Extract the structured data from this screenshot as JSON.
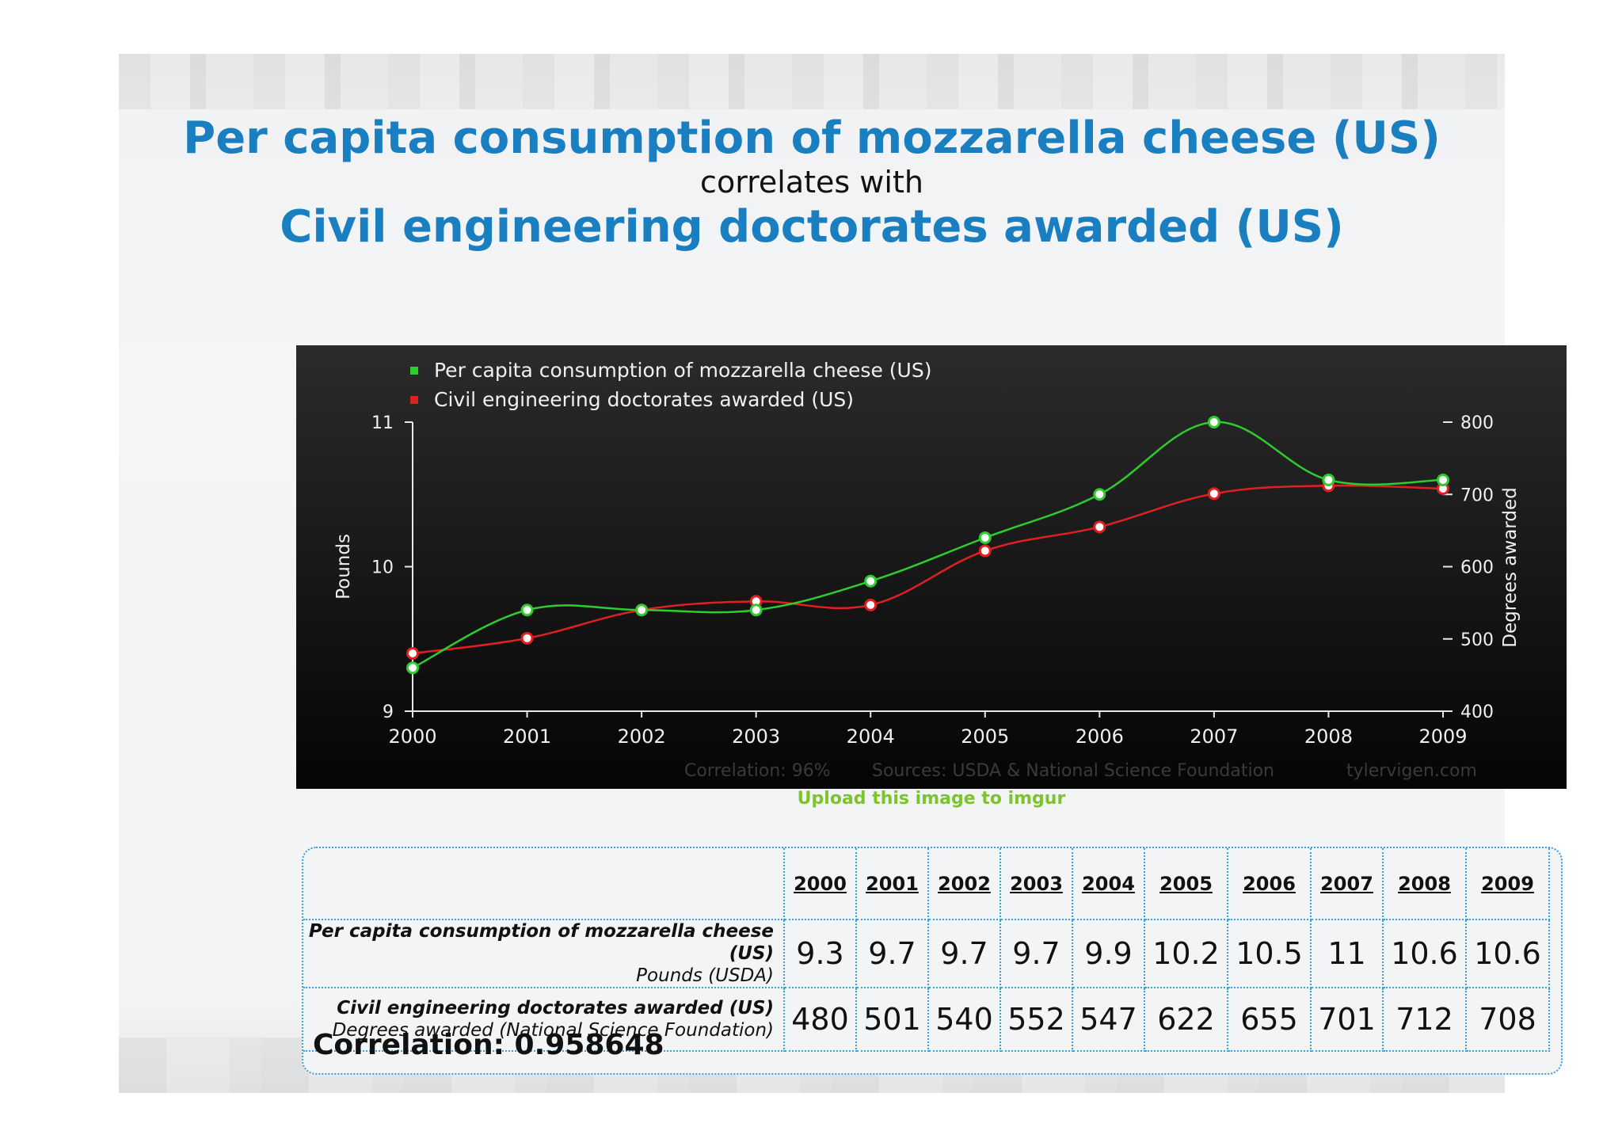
{
  "heading": {
    "line1": "Per capita consumption of mozzarella cheese (US)",
    "line2": "correlates with",
    "line3": "Civil engineering doctorates awarded (US)"
  },
  "chart_data": {
    "type": "line",
    "x": [
      "2000",
      "2001",
      "2002",
      "2003",
      "2004",
      "2005",
      "2006",
      "2007",
      "2008",
      "2009"
    ],
    "series": [
      {
        "name": "Per capita consumption of mozzarella cheese (US)",
        "axis": "left",
        "color": "#2ecc2e",
        "values": [
          9.3,
          9.7,
          9.7,
          9.7,
          9.9,
          10.2,
          10.5,
          11,
          10.6,
          10.6
        ]
      },
      {
        "name": "Civil engineering doctorates awarded (US)",
        "axis": "right",
        "color": "#e02020",
        "values": [
          480,
          501,
          540,
          552,
          547,
          622,
          655,
          701,
          712,
          708
        ]
      }
    ],
    "y_left": {
      "label": "Pounds",
      "range": [
        9,
        11
      ],
      "ticks": [
        "9",
        "10",
        "11"
      ]
    },
    "y_right": {
      "label": "Degrees awarded",
      "range": [
        400,
        800
      ],
      "ticks": [
        "400",
        "500",
        "600",
        "700",
        "800"
      ]
    },
    "legend_position": "top-left",
    "footer": {
      "correlation": "Correlation: 96%",
      "sources": "Sources: USDA & National Science Foundation",
      "site": "tylervigen.com"
    }
  },
  "upload_link": "Upload this image to imgur",
  "table": {
    "years": [
      "2000",
      "2001",
      "2002",
      "2003",
      "2004",
      "2005",
      "2006",
      "2007",
      "2008",
      "2009"
    ],
    "rows": [
      {
        "title": "Per capita consumption of mozzarella cheese (US)",
        "subtitle": "Pounds (USDA)",
        "values": [
          "9.3",
          "9.7",
          "9.7",
          "9.7",
          "9.9",
          "10.2",
          "10.5",
          "11",
          "10.6",
          "10.6"
        ]
      },
      {
        "title": "Civil engineering doctorates awarded (US)",
        "subtitle": "Degrees awarded (National Science Foundation)",
        "values": [
          "480",
          "501",
          "540",
          "552",
          "547",
          "622",
          "655",
          "701",
          "712",
          "708"
        ]
      }
    ],
    "correlation": "Correlation: 0.958648"
  }
}
